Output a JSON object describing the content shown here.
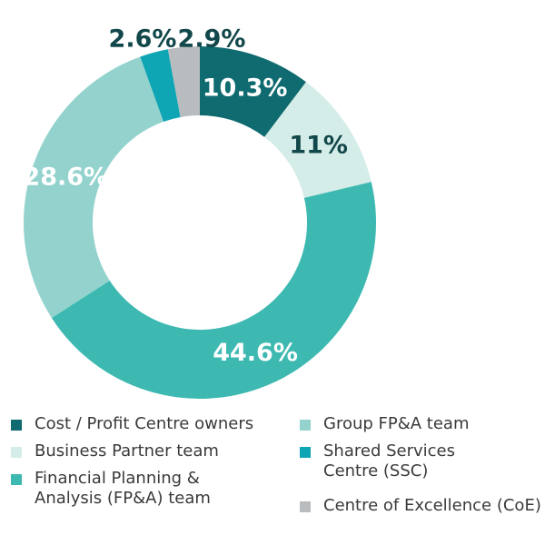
{
  "chart_data": {
    "type": "pie",
    "donut": true,
    "title": "",
    "legend_placement": "bottom",
    "series": [
      {
        "slices": [
          {
            "label": "Cost / Profit Centre owners",
            "legend_label": "Cost / Profit Centre owners",
            "value": 10.3,
            "value_label": "10.3%",
            "color": "#0f6b6f",
            "text_color": "#ffffff"
          },
          {
            "label": "Business Partner team",
            "legend_label": "Business Partner team",
            "value": 11,
            "value_label": "11%",
            "color": "#d5ede8",
            "text_color": "#12474b"
          },
          {
            "label": "Financial Planning & Analysis (FP&A) team",
            "legend_label": "Financial Planning &\nAnalysis (FP&A) team",
            "value": 44.6,
            "value_label": "44.6%",
            "color": "#3db9b1",
            "text_color": "#ffffff"
          },
          {
            "label": "Group FP&A team",
            "legend_label": "Group FP&A team",
            "value": 28.6,
            "value_label": "28.6%",
            "color": "#94d3cd",
            "text_color": "#ffffff"
          },
          {
            "label": "Shared Services Centre (SSC)",
            "legend_label": "Shared Services\nCentre (SSC)",
            "value": 2.6,
            "value_label": "2.6%",
            "color": "#0ea5b5",
            "text_color": "#12474b"
          },
          {
            "label": "Centre of Excellence (CoE)",
            "legend_label": "Centre of Excellence (CoE)",
            "value": 2.9,
            "value_label": "2.9%",
            "color": "#b9bcbe",
            "text_color": "#12474b"
          }
        ]
      }
    ]
  }
}
